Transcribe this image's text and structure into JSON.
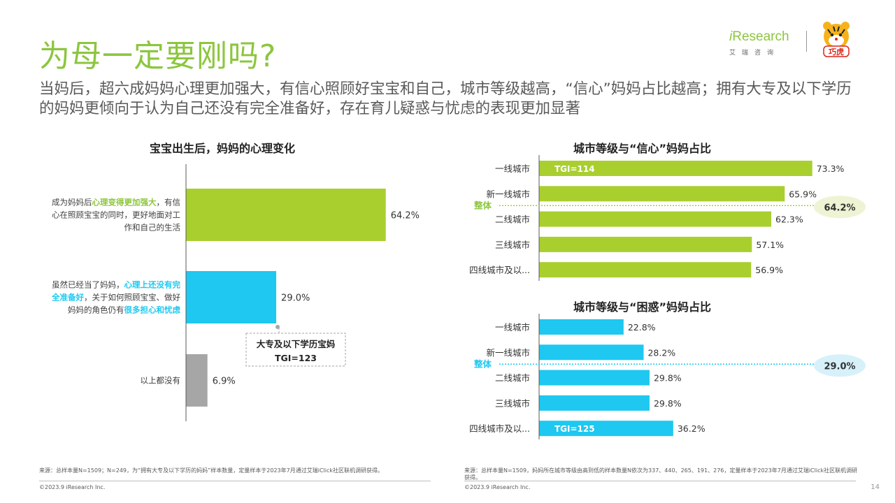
{
  "header": {
    "title": "为母一定要刚吗?",
    "subtitle": "当妈后，超六成妈妈心理更加强大，有信心照顾好宝宝和自己，城市等级越高，“信心”妈妈占比越高；拥有大专及以下学历的妈妈更倾向于认为自己还没有完全准备好，存在育儿疑惑与忧虑的表现更加显著",
    "logo_text": "Research",
    "logo_i": "i",
    "logo_sub": "艾瑞咨询",
    "brand_text": "巧虎"
  },
  "colors": {
    "green": "#a9cf2f",
    "blue": "#1ec8f0",
    "gray": "#a6a6a6",
    "title_green": "#8cc63e"
  },
  "chart_data": [
    {
      "type": "bar",
      "orientation": "horizontal",
      "title": "宝宝出生后，妈妈的心理变化",
      "categories": [
        [
          "成为妈妈后",
          "心理变得更加强大",
          "，有信心在照顾宝宝的同时，更好地面对工作和自己的生活"
        ],
        [
          "虽然已经当了妈妈，",
          "心理上还没有完全准备好",
          "，关于如何照顾宝宝、做好妈妈的角色仍有",
          "很多担心和忧虑"
        ],
        [
          "以上都没有"
        ]
      ],
      "values": [
        64.2,
        29.0,
        6.9
      ],
      "labels": [
        "64.2%",
        "29.0%",
        "6.9%"
      ],
      "bar_colors": [
        "#a9cf2f",
        "#1ec8f0",
        "#a6a6a6"
      ],
      "callout": {
        "title": "大专及以下学历宝妈",
        "value": "TGI=123"
      },
      "xlim": [
        0,
        100
      ]
    },
    {
      "type": "bar",
      "orientation": "horizontal",
      "title": "城市等级与“信心”妈妈占比",
      "categories": [
        "一线城市",
        "新一线城市",
        "二线城市",
        "三线城市",
        "四线城市及以..."
      ],
      "values": [
        73.3,
        65.9,
        62.3,
        57.1,
        56.9
      ],
      "labels": [
        "73.3%",
        "65.9%",
        "62.3%",
        "57.1%",
        "56.9%"
      ],
      "tgi": {
        "index": 0,
        "text": "TGI=114"
      },
      "overall": {
        "label": "整体",
        "value": 64.2,
        "text": "64.2%"
      },
      "color": "#a9cf2f",
      "xlim": [
        0,
        100
      ]
    },
    {
      "type": "bar",
      "orientation": "horizontal",
      "title": "城市等级与“困惑”妈妈占比",
      "categories": [
        "一线城市",
        "新一线城市",
        "二线城市",
        "三线城市",
        "四线城市及以..."
      ],
      "values": [
        22.8,
        28.2,
        29.8,
        29.8,
        36.2
      ],
      "labels": [
        "22.8%",
        "28.2%",
        "29.8%",
        "29.8%",
        "36.2%"
      ],
      "tgi": {
        "index": 4,
        "text": "TGI=125"
      },
      "overall": {
        "label": "整体",
        "value": 29.0,
        "text": "29.0%"
      },
      "color": "#1ec8f0",
      "xlim": [
        0,
        40
      ]
    }
  ],
  "footer": {
    "left_note": "来源：总样本量N=1509；N=249，为“拥有大专及以下学历的妈妈”样本数量，定量样本于2023年7月通过艾瑞iClick社区联机调研获得。",
    "right_note": "来源：总样本量N=1509，妈妈所在城市等级由高到低的样本数量N依次为337、440、265、191、276，定量样本于2023年7月通过艾瑞iClick社区联机调研获得。",
    "copyright": "©2023.9 iResearch Inc.",
    "page": "14"
  }
}
